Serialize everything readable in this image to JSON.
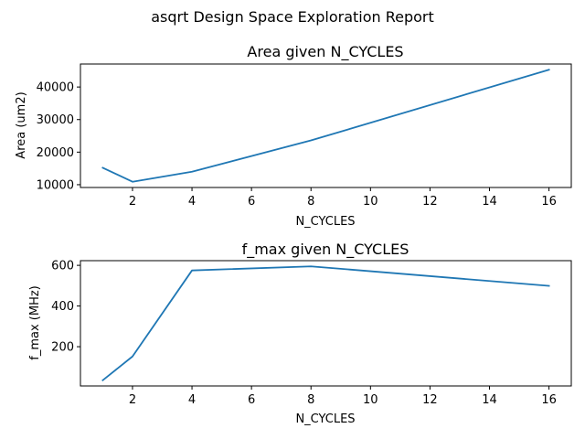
{
  "figure": {
    "title": "asqrt Design Space Exploration Report"
  },
  "chart_data": [
    {
      "type": "line",
      "title": "Area given N_CYCLES",
      "xlabel": "N_CYCLES",
      "ylabel": "Area (um2)",
      "x": [
        1,
        2,
        4,
        8,
        16
      ],
      "series": [
        {
          "values": [
            15200,
            10900,
            14000,
            23600,
            45300
          ],
          "color": "#1f77b4"
        }
      ],
      "xlim": [
        0.25,
        16.75
      ],
      "ylim": [
        9140,
        47060
      ],
      "xticks": [
        2,
        4,
        6,
        8,
        10,
        12,
        14,
        16
      ],
      "yticks": [
        10000,
        20000,
        30000,
        40000
      ],
      "grid": false,
      "legend": "none"
    },
    {
      "type": "line",
      "title": "f_max given N_CYCLES",
      "xlabel": "N_CYCLES",
      "ylabel": "f_max (MHz)",
      "x": [
        1,
        2,
        4,
        8,
        16
      ],
      "series": [
        {
          "values": [
            35,
            152,
            575,
            595,
            499
          ],
          "color": "#1f77b4"
        }
      ],
      "xlim": [
        0.25,
        16.75
      ],
      "ylim": [
        7,
        623
      ],
      "xticks": [
        2,
        4,
        6,
        8,
        10,
        12,
        14,
        16
      ],
      "yticks": [
        200,
        400,
        600
      ],
      "grid": false,
      "legend": "none"
    }
  ]
}
